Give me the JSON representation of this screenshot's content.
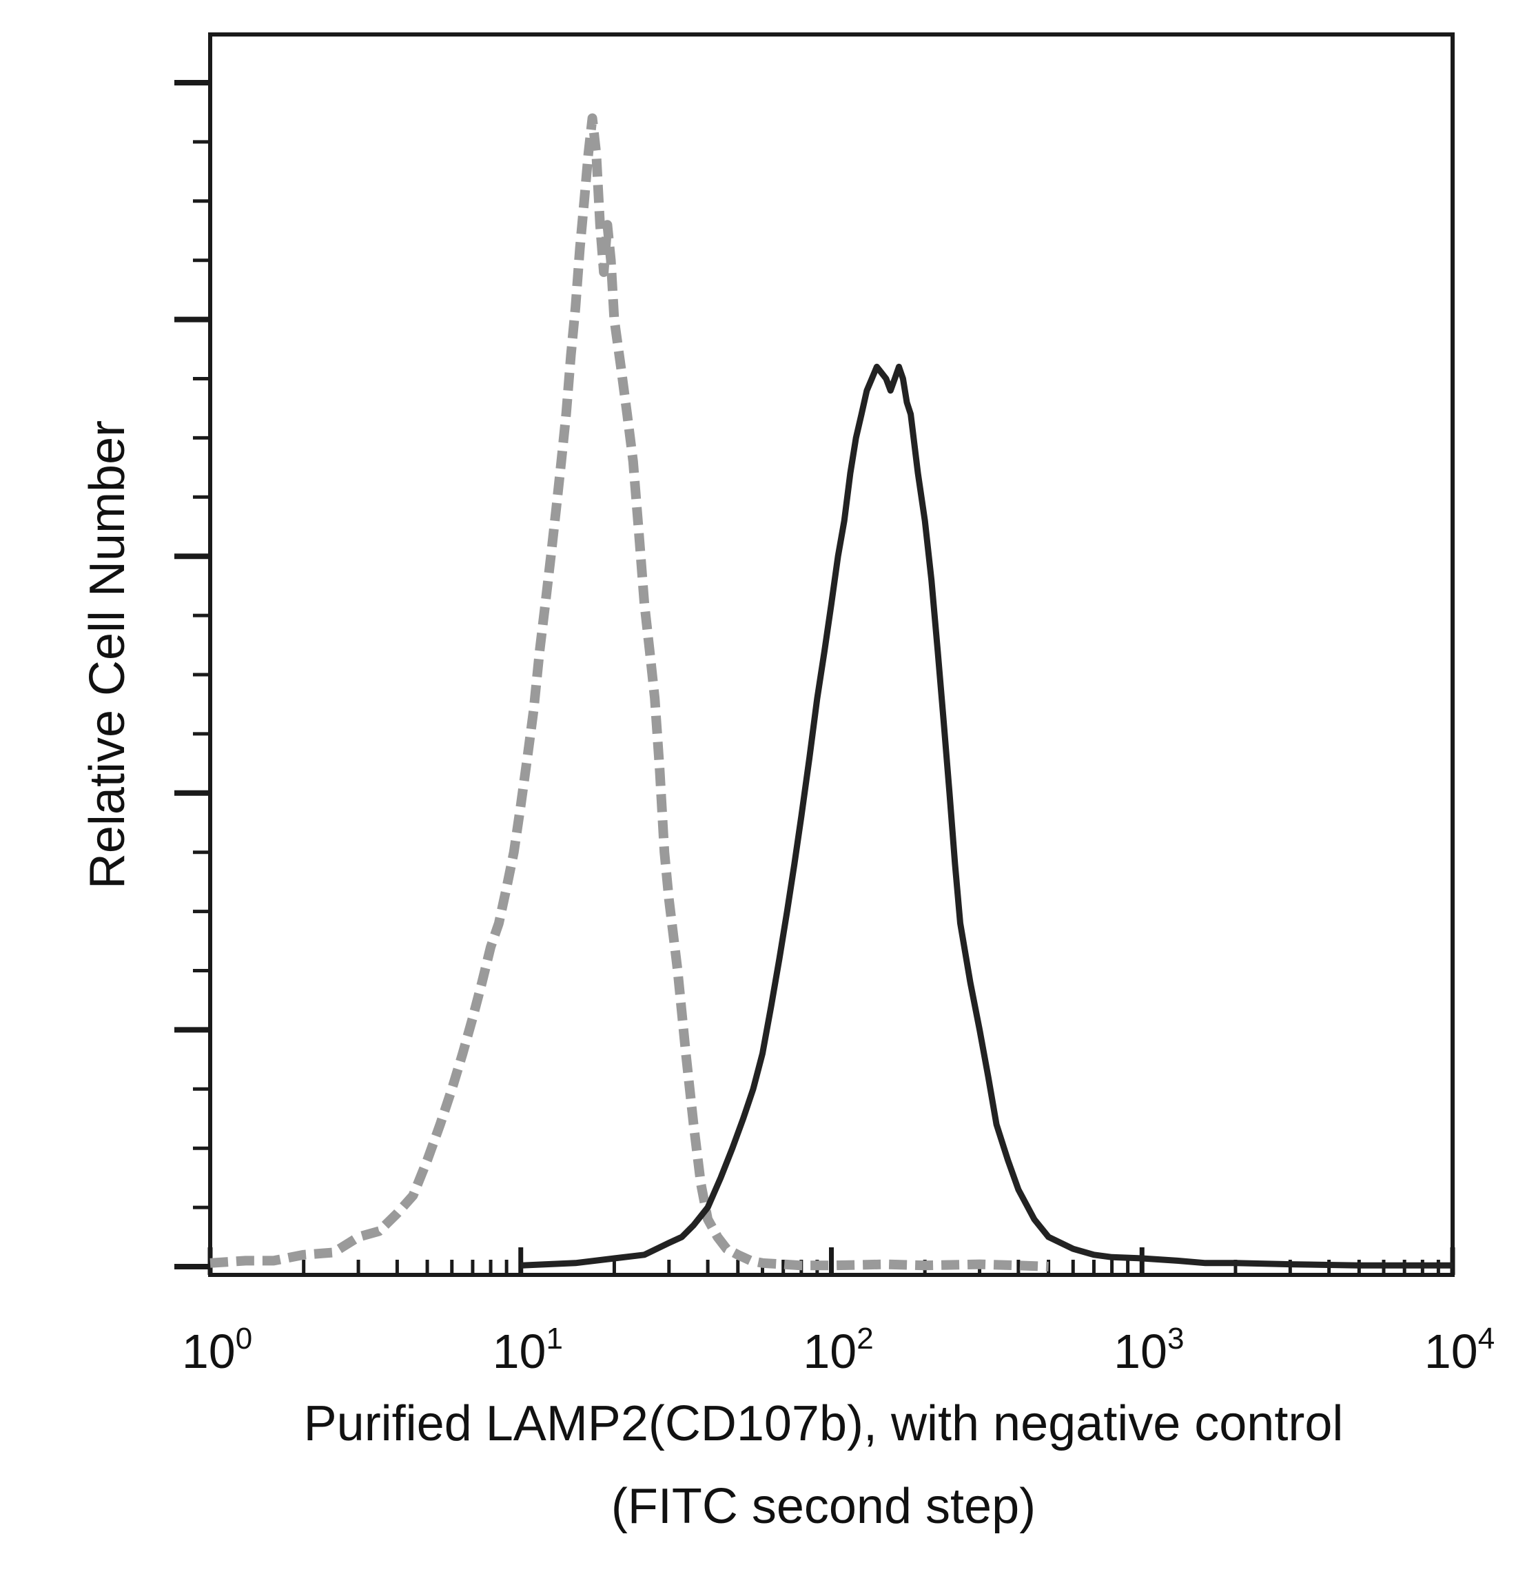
{
  "chart_data": {
    "type": "line",
    "title": "",
    "xlabel_lines": [
      "Purified LAMP2(CD107b), with negative control",
      "(FITC second step)"
    ],
    "ylabel": "Relative Cell Number",
    "x_scale": "log",
    "xlim": [
      1,
      10000
    ],
    "ylim": [
      0,
      100
    ],
    "grid": false,
    "legend": "none",
    "x_ticks": [
      {
        "value": 1,
        "base": "10",
        "exp": "0"
      },
      {
        "value": 10,
        "base": "10",
        "exp": "1"
      },
      {
        "value": 100,
        "base": "10",
        "exp": "2"
      },
      {
        "value": 1000,
        "base": "10",
        "exp": "3"
      },
      {
        "value": 10000,
        "base": "10",
        "exp": "4"
      }
    ],
    "y_major_ticks": [
      0,
      20,
      40,
      60,
      80,
      100
    ],
    "y_minor_step": 5,
    "series": [
      {
        "style": "dashed",
        "color": "#9a9a9a",
        "x": [
          1.0,
          1.3,
          1.6,
          2.0,
          2.5,
          3.0,
          3.5,
          4.0,
          4.5,
          5.0,
          5.5,
          6.0,
          6.5,
          7.0,
          7.5,
          8.0,
          8.5,
          9.0,
          9.5,
          10.0,
          10.5,
          11.0,
          11.5,
          12.0,
          12.5,
          13.0,
          13.5,
          14.0,
          14.5,
          15.0,
          15.5,
          16.0,
          16.5,
          17.0,
          17.5,
          18.0,
          18.5,
          19.0,
          19.5,
          20.0,
          21.0,
          22.0,
          23.0,
          24.0,
          25.0,
          26.0,
          27.0,
          28.0,
          29.0,
          30.0,
          32.0,
          34.0,
          36.0,
          38.0,
          40.0,
          43.0,
          46.0,
          50.0,
          55.0,
          60.0,
          70.0,
          80.0,
          100.0,
          150.0,
          200.0,
          300.0,
          400.0,
          500.0
        ],
        "y": [
          0.3,
          0.5,
          0.5,
          1.0,
          1.2,
          2.5,
          3.0,
          4.5,
          6.0,
          9.0,
          12.0,
          15.0,
          18.0,
          21.0,
          24.0,
          27.0,
          29.0,
          32.0,
          35.0,
          39.0,
          43.0,
          47.0,
          52.0,
          56.0,
          60.0,
          64.0,
          68.0,
          72.0,
          77.0,
          81.0,
          86.0,
          90.0,
          94.0,
          97.0,
          94.0,
          88.0,
          84.0,
          88.0,
          85.0,
          80.0,
          76.0,
          72.0,
          68.0,
          62.0,
          56.0,
          52.0,
          48.0,
          42.0,
          35.0,
          31.0,
          25.0,
          18.0,
          12.0,
          7.0,
          4.0,
          2.5,
          1.5,
          1.0,
          0.5,
          0.3,
          0.2,
          0.1,
          0.1,
          0.2,
          0.1,
          0.2,
          0.1,
          0.0
        ]
      },
      {
        "style": "solid",
        "color": "#222222",
        "x": [
          10.0,
          15.0,
          20.0,
          25.0,
          30.0,
          33.0,
          36.0,
          40.0,
          44.0,
          48.0,
          52.0,
          56.0,
          60.0,
          64.0,
          68.0,
          72.0,
          76.0,
          80.0,
          85.0,
          90.0,
          95.0,
          100.0,
          105.0,
          110.0,
          115.0,
          120.0,
          125.0,
          130.0,
          135.0,
          140.0,
          145.0,
          150.0,
          155.0,
          160.0,
          165.0,
          170.0,
          175.0,
          180.0,
          190.0,
          200.0,
          210.0,
          220.0,
          230.0,
          240.0,
          250.0,
          260.0,
          280.0,
          300.0,
          320.0,
          340.0,
          370.0,
          400.0,
          450.0,
          500.0,
          600.0,
          700.0,
          800.0,
          1000.0,
          1300.0,
          1600.0,
          2000.0,
          3000.0,
          5000.0,
          10000.0
        ],
        "y": [
          0.1,
          0.3,
          0.7,
          1.0,
          2.0,
          2.5,
          3.5,
          5.0,
          7.5,
          10.0,
          12.5,
          15.0,
          18.0,
          22.0,
          26.0,
          30.0,
          34.0,
          38.0,
          43.0,
          48.0,
          52.0,
          56.0,
          60.0,
          63.0,
          67.0,
          70.0,
          72.0,
          74.0,
          75.0,
          76.0,
          75.5,
          75.0,
          74.0,
          75.0,
          76.0,
          75.0,
          73.0,
          72.0,
          67.0,
          63.0,
          58.0,
          52.0,
          46.0,
          40.0,
          34.0,
          29.0,
          24.0,
          20.0,
          16.0,
          12.0,
          9.0,
          6.5,
          4.0,
          2.5,
          1.5,
          1.0,
          0.8,
          0.7,
          0.5,
          0.3,
          0.3,
          0.2,
          0.1,
          0.1
        ]
      }
    ]
  }
}
